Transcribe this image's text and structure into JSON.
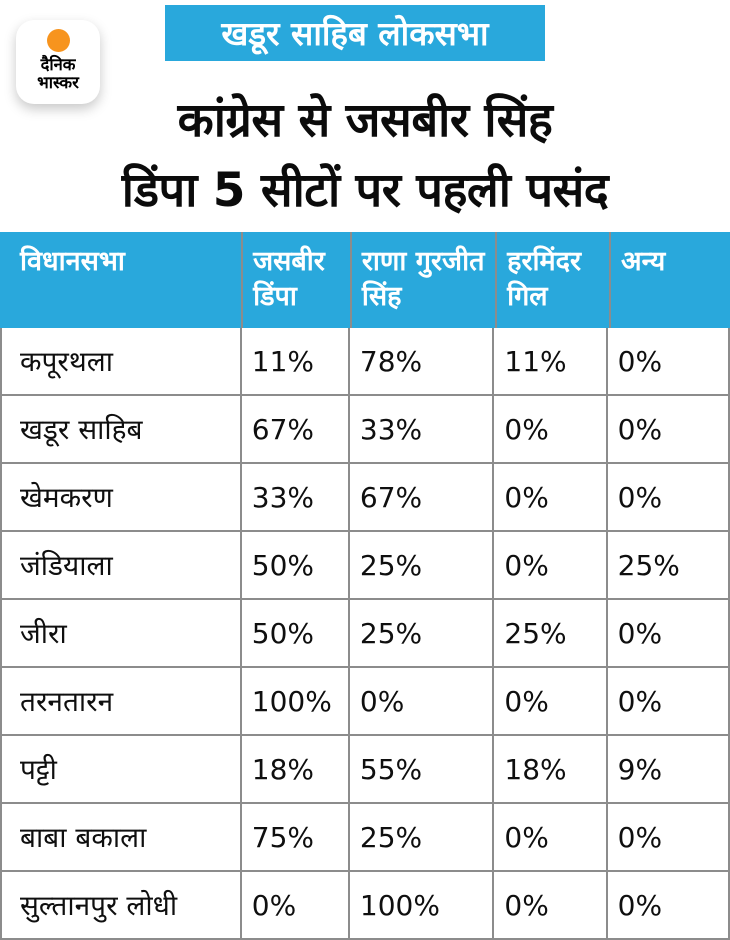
{
  "brand": {
    "logo_line1": "दैनिक",
    "logo_line2": "भास्कर"
  },
  "badge": {
    "text": "खडूर साहिब लोकसभा"
  },
  "headline": {
    "line1": "कांग्रेस से जसबीर सिंह",
    "line2": "डिंपा 5 सीटों पर पहली पसंद"
  },
  "colors": {
    "accent_blue": "#29A8DC",
    "logo_orange": "#F7941E",
    "border_gray": "#8C8C8C",
    "text_black": "#0F0F0F"
  },
  "chart_data": {
    "type": "table",
    "title": "कांग्रेस से जसबीर सिंह डिंपा 5 सीटों पर पहली पसंद",
    "subtitle": "खडूर साहिब लोकसभा",
    "columns": [
      "विधानसभा",
      "जसबीर डिंपा",
      "राणा गुरजीत सिंह",
      "हरमिंदर गिल",
      "अन्य"
    ],
    "rows": [
      [
        "कपूरथला",
        "11%",
        "78%",
        "11%",
        "0%"
      ],
      [
        "खडूर साहिब",
        "67%",
        "33%",
        "0%",
        "0%"
      ],
      [
        "खेमकरण",
        "33%",
        "67%",
        "0%",
        "0%"
      ],
      [
        "जंडियाला",
        "50%",
        "25%",
        "0%",
        "25%"
      ],
      [
        "जीरा",
        "50%",
        "25%",
        "25%",
        "0%"
      ],
      [
        "तरनतारन",
        "100%",
        "0%",
        "0%",
        "0%"
      ],
      [
        "पट्टी",
        "18%",
        "55%",
        "18%",
        "9%"
      ],
      [
        "बाबा बकाला",
        "75%",
        "25%",
        "0%",
        "0%"
      ],
      [
        "सुल्तानपुर लोधी",
        "0%",
        "100%",
        "0%",
        "0%"
      ]
    ]
  }
}
